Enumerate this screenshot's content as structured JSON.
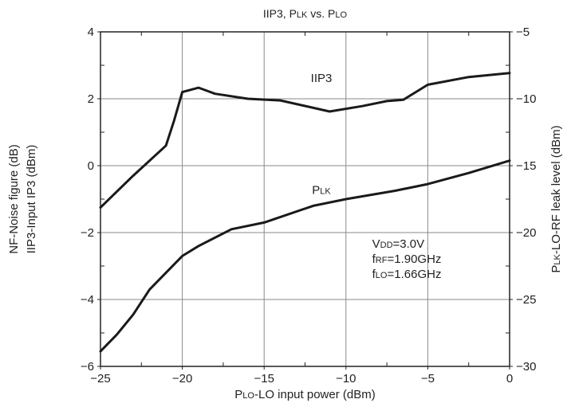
{
  "chart_data": {
    "type": "line",
    "title": {
      "parts": [
        "IIP3, P",
        "LK",
        " vs. P",
        "LO"
      ]
    },
    "xlabel": {
      "parts": [
        "P",
        "LO",
        "-LO input power (dBm)"
      ]
    },
    "ylabel_left": [
      "NF-Noise figure (dB)",
      "IIP3-Input IP3 (dBm)"
    ],
    "ylabel_right": {
      "parts": [
        "P",
        "LK",
        "-LO-RF leak level (dBm)"
      ]
    },
    "xlim": [
      -25,
      0
    ],
    "ylim_left": [
      -6,
      4
    ],
    "ylim_right": [
      -30,
      -5
    ],
    "x_ticks": [
      -25,
      -20,
      -15,
      -10,
      -5,
      0
    ],
    "x_tick_labels": [
      "−25",
      "−20",
      "−15",
      "−10",
      "−5",
      "0"
    ],
    "y_left_ticks": [
      -6,
      -4,
      -2,
      0,
      2,
      4
    ],
    "y_left_tick_labels": [
      "−6",
      "−4",
      "−2",
      "0",
      "2",
      "4"
    ],
    "y_right_ticks": [
      -30,
      -25,
      -20,
      -15,
      -10,
      -5
    ],
    "y_right_tick_labels": [
      "−30",
      "−25",
      "−20",
      "−15",
      "−10",
      "−5"
    ],
    "grid": true,
    "series": [
      {
        "name": "IIP3",
        "axis": "left",
        "label_parts": [
          "IIP3"
        ],
        "label_at": {
          "x": -11.5,
          "y": 2.5
        },
        "x": [
          -25,
          -23,
          -21,
          -20.5,
          -20,
          -19,
          -18,
          -16,
          -14,
          -11,
          -9,
          -7.5,
          -6.5,
          -5,
          -2.5,
          0
        ],
        "y": [
          -1.25,
          -0.3,
          0.6,
          1.35,
          2.2,
          2.33,
          2.15,
          2.0,
          1.95,
          1.62,
          1.78,
          1.93,
          1.97,
          2.42,
          2.65,
          2.77
        ]
      },
      {
        "name": "PLK",
        "axis": "left",
        "label_parts": [
          "P",
          "LK"
        ],
        "label_at": {
          "x": -11.5,
          "y": -0.85
        },
        "x": [
          -25,
          -24,
          -23,
          -22,
          -21,
          -20,
          -19,
          -17,
          -15,
          -12,
          -10,
          -7,
          -5,
          -2.5,
          0
        ],
        "y": [
          -5.55,
          -5.05,
          -4.45,
          -3.7,
          -3.2,
          -2.7,
          -2.4,
          -1.9,
          -1.7,
          -1.2,
          -1.0,
          -0.75,
          -0.55,
          -0.22,
          0.15
        ]
      }
    ],
    "annotation": {
      "at": {
        "x": -8.4,
        "y": -2.45
      },
      "lines": [
        {
          "parts": [
            "V",
            "DD",
            "=3.0V"
          ]
        },
        {
          "parts": [
            "f",
            "RF",
            "=1.90GHz"
          ]
        },
        {
          "parts": [
            "f",
            "LO",
            "=1.66GHz"
          ]
        }
      ]
    }
  }
}
